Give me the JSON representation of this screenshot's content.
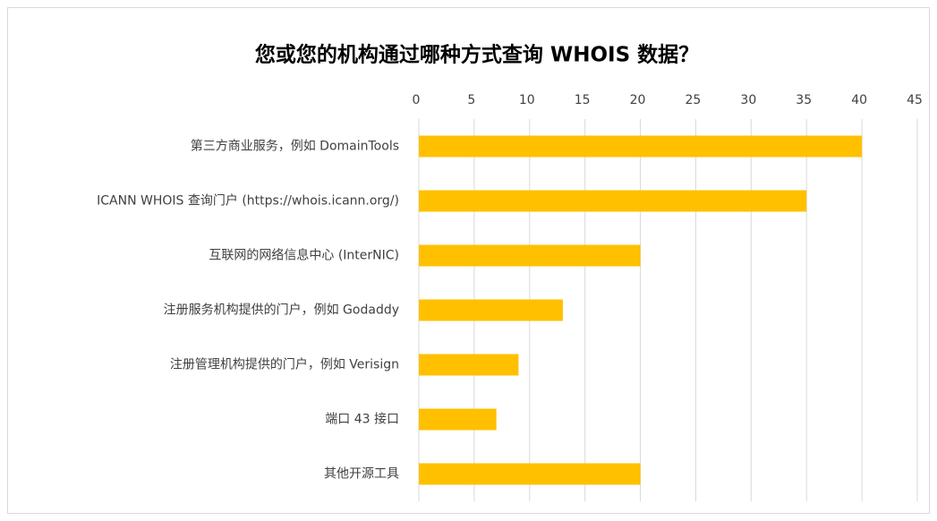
{
  "chart_data": {
    "type": "bar",
    "orientation": "horizontal",
    "title": "您或您的机构通过哪种方式查询 WHOIS 数据？",
    "categories": [
      "第三方商业服务，例如 DomainTools",
      "ICANN WHOIS 查询门户 (https://whois.icann.org/)",
      "互联网的网络信息中心 (InterNIC)",
      "注册服务机构提供的门户，例如 Godaddy",
      "注册管理机构提供的门户，例如 Verisign",
      "端口 43 接口",
      "其他开源工具"
    ],
    "values": [
      40,
      35,
      20,
      13,
      9,
      7,
      20
    ],
    "color": "#ffc000",
    "xlim": [
      0,
      45
    ],
    "xticks": [
      0,
      5,
      10,
      15,
      20,
      25,
      30,
      35,
      40,
      45
    ],
    "grid": true
  }
}
